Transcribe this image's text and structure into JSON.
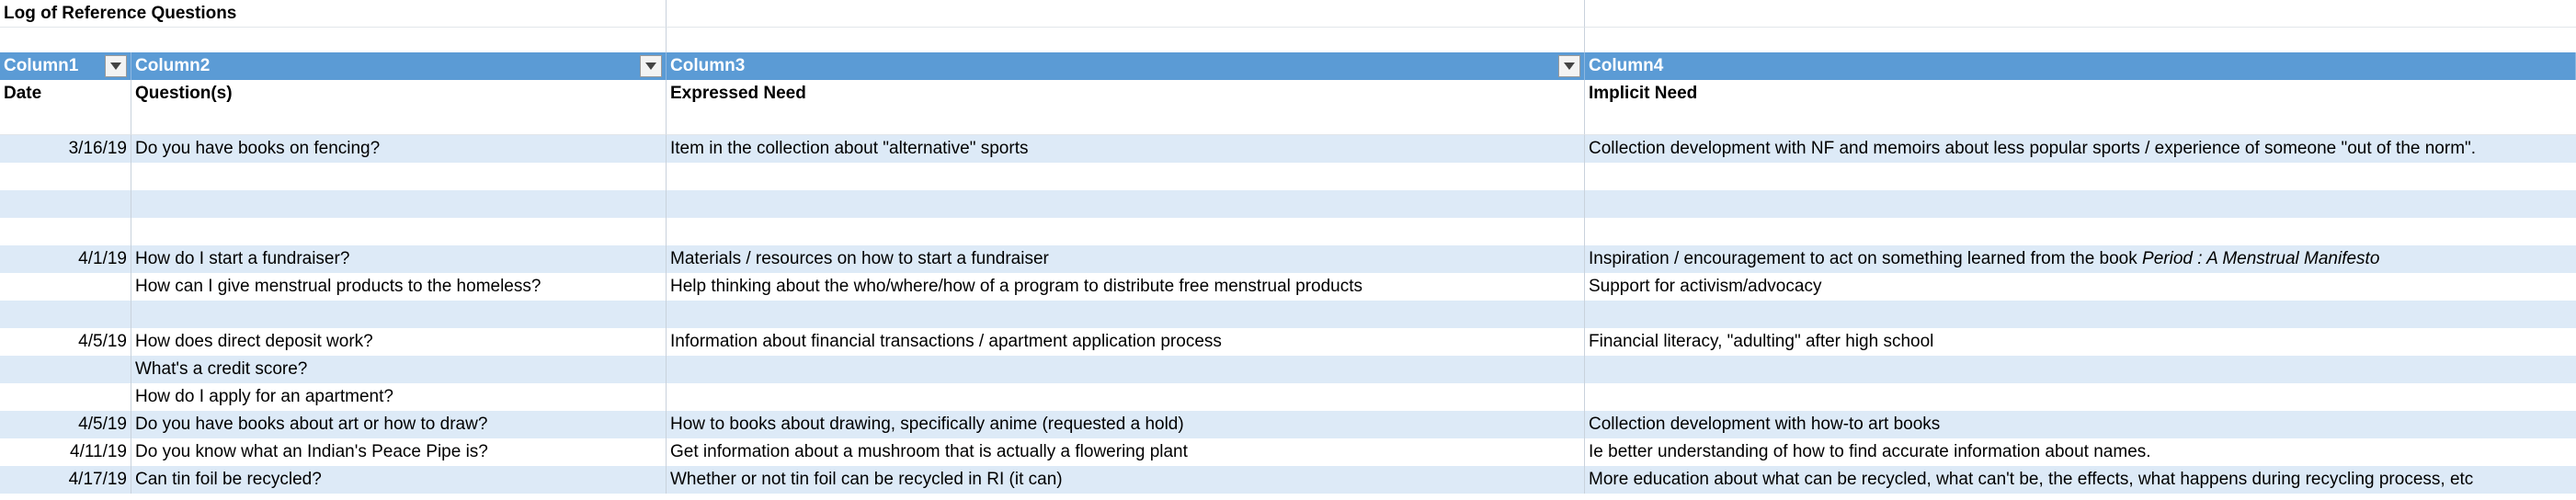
{
  "sheet": {
    "title": "Log of Reference Questions",
    "columns": [
      "Column1",
      "Column2",
      "Column3",
      "Column4"
    ],
    "subheaders": [
      "Date",
      "Question(s)",
      "Expressed Need",
      "Implicit Need"
    ],
    "rows": [
      {
        "date": "",
        "question": "",
        "expressed": "",
        "implicit": ""
      },
      {
        "date": "3/16/19",
        "question": "Do you have books on fencing?",
        "expressed": "Item in the collection about \"alternative\" sports",
        "implicit": "Collection development with NF and memoirs about less popular sports / experience of someone \"out of the norm\"."
      },
      {
        "date": "",
        "question": "",
        "expressed": "",
        "implicit": ""
      },
      {
        "date": "",
        "question": "",
        "expressed": "",
        "implicit": ""
      },
      {
        "date": "",
        "question": "",
        "expressed": "",
        "implicit": ""
      },
      {
        "date": "4/1/19",
        "question": "How do I start a fundraiser?",
        "expressed": "Materials / resources on how to start a fundraiser",
        "implicit": "Inspiration / encouragement to act on something learned from the book ",
        "implicit_italic": "Period : A Menstrual Manifesto"
      },
      {
        "date": "",
        "question": "How can I give menstrual products to the homeless?",
        "expressed": "Help thinking about the who/where/how of a program to distribute free menstrual products",
        "implicit": "Support for activism/advocacy"
      },
      {
        "date": "",
        "question": "",
        "expressed": "",
        "implicit": ""
      },
      {
        "date": "4/5/19",
        "question": "How does direct deposit work?",
        "expressed": "Information about financial transactions / apartment application process",
        "implicit": "Financial literacy, \"adulting\" after high school"
      },
      {
        "date": "",
        "question": "What's a credit score?",
        "expressed": "",
        "implicit": ""
      },
      {
        "date": "",
        "question": "How do I apply for an apartment?",
        "expressed": "",
        "implicit": ""
      },
      {
        "date": "4/5/19",
        "question": "Do you have books about art or how to draw?",
        "expressed": "How to books about drawing, specifically anime (requested a hold)",
        "implicit": "Collection development with how-to art books"
      },
      {
        "date": "4/11/19",
        "question": "Do you know what an Indian's Peace Pipe is?",
        "expressed": "Get information about a mushroom that is actually a flowering plant",
        "implicit": "Ie better understanding of how to find accurate information about names."
      },
      {
        "date": "4/17/19",
        "question": "Can tin foil be recycled?",
        "expressed": "Whether or not tin foil can be recycled in RI (it can)",
        "implicit": "More education about what can be recycled, what can't be, the effects, what happens during recycling process, etc"
      }
    ]
  }
}
